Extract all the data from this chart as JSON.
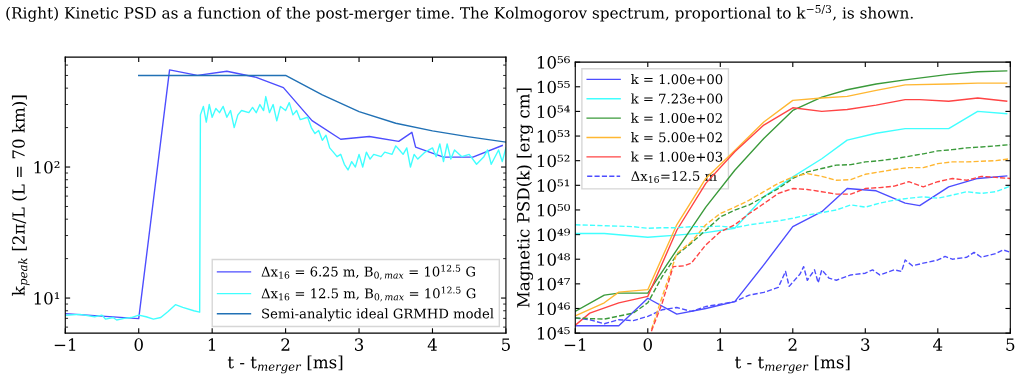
{
  "chart_data": [
    {
      "type": "line",
      "log": "y",
      "grid": false,
      "legend": "lower right",
      "line_style": "solid",
      "marker": "none",
      "annotations": [
        "(Right) Kinetic PSD as a function of the post-merger time. The Kolmogorov spectrum, proportional to k$^{−5/3}$, is shown."
      ],
      "xlabel": "t - t$_{merger}$ [ms]",
      "ylabel": "k$_{peak}$ [2π/L (L = 70 km)]",
      "xlim": [
        -1,
        5
      ],
      "ylim": [
        5.4,
        690
      ],
      "xticks": [
        {
          "value": -1,
          "label": "−1"
        },
        0,
        1,
        2,
        3,
        4,
        5
      ],
      "yticks": [
        {
          "value": 10,
          "label": "10¹"
        },
        {
          "value": 100,
          "label": "10²"
        }
      ],
      "series": [
        {
          "name": "Δx$_{16}$ = 6.25 m, B$_{0,max}$ = 10$^{12.5}$ G",
          "color": "#4d4dff",
          "x": [
            -1,
            0,
            0.42,
            0.8,
            1.2,
            1.6,
            1.97,
            2.36,
            2.75,
            3.14,
            3.54,
            3.72,
            3.77,
            4.15,
            4.55,
            4.95
          ],
          "values": [
            7.6,
            6.97,
            551,
            501,
            538,
            484,
            404,
            226,
            163,
            171,
            157,
            184,
            142,
            119,
            119,
            146
          ]
        },
        {
          "name": "Δx$_{16}$ = 12.5 m, B$_{0,max}$ = 10$^{12.5}$ G",
          "color": "#40ffff",
          "x": [
            -1,
            -0.8,
            -0.6,
            -0.5,
            -0.45,
            -0.35,
            -0.3,
            -0.2,
            -0.1,
            0,
            0.1,
            0.2,
            0.3,
            0.4,
            0.5,
            0.6,
            0.75,
            0.83,
            0.84,
            0.88,
            0.92,
            0.96,
            1.0,
            1.05,
            1.1,
            1.15,
            1.2,
            1.25,
            1.3,
            1.35,
            1.4,
            1.5,
            1.55,
            1.6,
            1.65,
            1.7,
            1.73,
            1.78,
            1.83,
            1.88,
            1.93,
            2.0,
            2.05,
            2.1,
            2.15,
            2.2,
            2.3,
            2.35,
            2.4,
            2.45,
            2.5,
            2.55,
            2.6,
            2.65,
            2.7,
            2.75,
            2.8,
            2.85,
            2.9,
            2.95,
            3.0,
            3.05,
            3.1,
            3.15,
            3.2,
            3.3,
            3.35,
            3.45,
            3.5,
            3.55,
            3.6,
            3.65,
            3.7,
            3.75,
            3.8,
            3.9,
            4.0,
            4.05,
            4.1,
            4.15,
            4.2,
            4.25,
            4.3,
            4.4,
            4.5,
            4.6,
            4.7,
            4.75,
            4.8,
            4.9,
            4.95,
            5.0
          ],
          "values": [
            7.4,
            7.5,
            7.2,
            7.4,
            6.9,
            7.1,
            6.8,
            7.0,
            7.1,
            7.4,
            7.2,
            6.9,
            7.1,
            7.9,
            8.9,
            8.5,
            8.0,
            7.8,
            250,
            290,
            220,
            300,
            240,
            280,
            260,
            290,
            240,
            270,
            200,
            250,
            270,
            260,
            285,
            260,
            300,
            270,
            345,
            260,
            300,
            225,
            290,
            270,
            310,
            250,
            270,
            230,
            240,
            200,
            180,
            190,
            160,
            175,
            140,
            130,
            120,
            125,
            105,
            95,
            110,
            100,
            125,
            100,
            130,
            115,
            125,
            120,
            130,
            125,
            145,
            135,
            125,
            140,
            100,
            125,
            115,
            130,
            140,
            120,
            150,
            110,
            150,
            115,
            135,
            120,
            125,
            105,
            120,
            135,
            105,
            135,
            110,
            140
          ]
        },
        {
          "name": "Semi-analytic ideal GRMHD model",
          "color": "#2171b5",
          "x": [
            0,
            2,
            2.5,
            3,
            3.5,
            4,
            4.5,
            5
          ],
          "values": [
            500,
            500,
            355,
            265,
            216,
            189,
            170,
            155
          ]
        }
      ]
    },
    {
      "type": "line",
      "log": "y",
      "grid": false,
      "legend": "upper left",
      "marker": "none",
      "xlabel": "t - t$_{merger}$ [ms]",
      "ylabel": "Magnetic PSD(k) [erg cm]",
      "xlim": [
        -1,
        5
      ],
      "ylim": [
        1e+45,
        1e+56
      ],
      "xticks": [
        {
          "value": -1,
          "label": "−1"
        },
        0,
        1,
        2,
        3,
        4,
        5
      ],
      "yticks": [
        {
          "value": 1e+45,
          "label": "10⁴⁵"
        },
        {
          "value": 1e+46,
          "label": "10⁴⁶"
        },
        {
          "value": 1e+47,
          "label": "10⁴⁷"
        },
        {
          "value": 1e+48,
          "label": "10⁴⁸"
        },
        {
          "value": 1e+49,
          "label": "10⁴⁹"
        },
        {
          "value": 1e+50,
          "label": "10⁵⁰"
        },
        {
          "value": 1e+51,
          "label": "10⁵¹"
        },
        {
          "value": 1e+52,
          "label": "10⁵²"
        },
        {
          "value": 1e+53,
          "label": "10⁵³"
        },
        {
          "value": 1e+54,
          "label": "10⁵⁴"
        },
        {
          "value": 1e+55,
          "label": "10⁵⁵"
        },
        {
          "value": 1e+56,
          "label": "10⁵⁶"
        }
      ],
      "series": [
        {
          "name": "k = 1.00e+00",
          "color": "#4d4dff",
          "line_style": "solid",
          "x": [
            -1,
            -0.6,
            -0.4,
            0,
            0.4,
            0.8,
            1.2,
            1.6,
            2.0,
            2.4,
            2.75,
            3.15,
            3.55,
            3.75,
            4.15,
            4.55,
            4.95
          ],
          "values": [
            2e+45,
            2e+45,
            2e+45,
            2.6e+46,
            5.9e+45,
            1e+46,
            1.9e+46,
            5.9e+47,
            2.1e+49,
            8.5e+49,
            7.4e+50,
            6e+50,
            1.9e+50,
            1.5e+50,
            8.7e+50,
            1.9e+51,
            2.4e+51
          ]
        },
        {
          "name": "k = 7.23e+00",
          "color": "#40ffff",
          "line_style": "solid",
          "x": [
            -1,
            -0.6,
            0,
            0.4,
            0.8,
            1.2,
            1.6,
            2.0,
            2.4,
            2.75,
            3.15,
            3.55,
            4.15,
            4.55,
            4.95
          ],
          "values": [
            1.1e+49,
            1.1e+49,
            7.8e+48,
            9.5e+48,
            1.2e+49,
            1.8e+49,
            3.4e+50,
            2.2e+51,
            1.2e+52,
            6.8e+52,
            1.3e+53,
            2e+53,
            2e+53,
            1e+54,
            8.1e+53
          ]
        },
        {
          "name": "k = 1.00e+02",
          "color": "#3a9a3a",
          "line_style": "solid",
          "x": [
            -1,
            -0.6,
            -0.4,
            0,
            0.4,
            0.8,
            1.2,
            1.6,
            2.0,
            2.4,
            2.75,
            3.15,
            3.55,
            4.15,
            4.55,
            4.95
          ],
          "values": [
            7.6e+45,
            3.5e+46,
            4.2e+46,
            4.2e+46,
            2.4e+48,
            1.3e+50,
            4.1e+51,
            7.9e+52,
            1.1e+54,
            3.8e+54,
            7.6e+54,
            1.3e+55,
            1.9e+55,
            3.2e+55,
            4.1e+55,
            4.4e+55
          ]
        },
        {
          "name": "k = 5.00e+02",
          "color": "#ffb732",
          "line_style": "solid",
          "x": [
            -1,
            -0.6,
            -0.4,
            0,
            0.4,
            0.8,
            1.2,
            1.6,
            2.0,
            2.4,
            2.75,
            3.15,
            3.55,
            4.15,
            4.55,
            4.95
          ],
          "values": [
            5e+45,
            1.7e+46,
            4.6e+46,
            5.8e+46,
            2.5e+49,
            1.9e+51,
            2.6e+52,
            3.7e+53,
            2.8e+54,
            3.5e+54,
            4.1e+54,
            7.1e+54,
            1.2e+55,
            1.3e+55,
            1.4e+55,
            1.4e+55
          ]
        },
        {
          "name": "k = 1.00e+03",
          "color": "#ff4444",
          "line_style": "solid",
          "x": [
            -1,
            -0.8,
            -0.4,
            0,
            0.4,
            0.8,
            1.2,
            1.6,
            2.0,
            2.4,
            2.75,
            3.15,
            3.55,
            3.75,
            4.15,
            4.55,
            4.95
          ],
          "values": [
            2.1e+45,
            6.5e+45,
            1.7e+46,
            3.1e+46,
            1.5e+49,
            1.2e+51,
            2.3e+52,
            2.8e+53,
            1.4e+54,
            1e+54,
            1.2e+54,
            1.8e+54,
            3e+54,
            3e+54,
            2.6e+54,
            3.5e+54,
            2.6e+54
          ]
        },
        {
          "name": "Δx$_{16}$=12.5 m",
          "color": "#4d4dff",
          "line_style": "dashed",
          "x": [
            -1,
            -0.8,
            -0.6,
            -0.4,
            -0.2,
            0,
            0.2,
            0.4,
            0.6,
            0.8,
            1.0,
            1.2,
            1.4,
            1.6,
            1.8,
            1.9,
            1.95,
            2.1,
            2.15,
            2.2,
            2.3,
            2.35,
            2.4,
            2.5,
            2.6,
            2.8,
            3.0,
            3.1,
            3.2,
            3.4,
            3.5,
            3.55,
            3.65,
            3.8,
            4.0,
            4.1,
            4.2,
            4.4,
            4.5,
            4.6,
            4.8,
            4.9,
            5.0
          ],
          "values": [
            4.1e+45,
            3.5e+45,
            2.4e+45,
            3.5e+45,
            3.2e+45,
            4.8e+45,
            8.9e+45,
            1.1e+46,
            7.6e+45,
            1.2e+46,
            1.5e+46,
            1.9e+46,
            3.5e+46,
            4.5e+46,
            7.2e+46,
            3.2e+47,
            7.9e+46,
            2.5e+47,
            5e+47,
            1.4e+47,
            3.7e+47,
            1.1e+47,
            3.7e+47,
            1.7e+47,
            1.4e+47,
            2.3e+47,
            2.7e+47,
            3.7e+47,
            2.3e+47,
            3.7e+47,
            3.2e+47,
            9.3e+47,
            5.4e+47,
            6.9e+47,
            9.3e+47,
            1.3e+48,
            1e+48,
            1.2e+48,
            1.9e+48,
            1.2e+48,
            1.7e+48,
            2.4e+48,
            1.9e+48
          ]
        },
        {
          "color": "#40ffff",
          "line_style": "dashed",
          "x": [
            -1,
            -0.6,
            -0.2,
            0,
            0.2,
            0.4,
            0.6,
            0.8,
            1.0,
            1.2,
            1.4,
            1.6,
            1.8,
            2.0,
            2.2,
            2.4,
            2.6,
            2.8,
            3.0,
            3.2,
            3.4,
            3.6,
            3.8,
            4.0,
            4.2,
            4.4,
            4.6,
            4.8,
            5.0
          ],
          "values": [
            2.5e+49,
            2.3e+49,
            2.1e+49,
            1.8e+49,
            1.9e+49,
            1.9e+49,
            2.1e+49,
            2.1e+49,
            2.2e+49,
            1.9e+49,
            2.5e+49,
            3e+49,
            3.6e+49,
            4.6e+49,
            6.2e+49,
            7.8e+49,
            1e+50,
            1.6e+50,
            1.3e+50,
            1.9e+50,
            2.5e+50,
            3e+50,
            3.4e+50,
            3e+50,
            4e+50,
            5.5e+50,
            4.7e+50,
            5.5e+50,
            9.3e+50
          ]
        },
        {
          "color": "#3a9a3a",
          "line_style": "dashed",
          "x": [
            -1,
            -0.6,
            -0.2,
            0,
            0.2,
            0.4,
            0.6,
            0.8,
            1.0,
            1.2,
            1.4,
            1.6,
            1.8,
            2.0,
            2.2,
            2.4,
            2.6,
            2.8,
            3.0,
            3.2,
            3.4,
            3.6,
            3.8,
            4.0,
            4.2,
            4.4,
            4.6,
            4.8,
            5.0
          ],
          "values": [
            4.1e+45,
            3.7e+45,
            6.5e+45,
            1.7e+46,
            2e+47,
            1.5e+48,
            4.5e+48,
            1.5e+49,
            5.2e+49,
            9.8e+49,
            1.6e+50,
            3.4e+50,
            7.4e+50,
            1.9e+51,
            3.5e+51,
            4.8e+51,
            6.6e+51,
            6.9e+51,
            8.9e+51,
            1e+52,
            1.2e+52,
            1.5e+52,
            1.9e+52,
            2.5e+52,
            2.8e+52,
            3.3e+52,
            3.6e+52,
            4e+52,
            4.5e+52
          ]
        },
        {
          "color": "#ffb732",
          "line_style": "dashed",
          "x": [
            0.05,
            0.2,
            0.4,
            0.6,
            0.8,
            1.0,
            1.2,
            1.4,
            1.6,
            1.8,
            2.0,
            2.2,
            2.4,
            2.6,
            2.8,
            3.0,
            3.2,
            3.4,
            3.6,
            3.8,
            4.0,
            4.2,
            4.4,
            4.6,
            4.8,
            5.0
          ],
          "values": [
            1.4e+45,
            3.1e+46,
            1.7e+48,
            5.1e+48,
            2.5e+49,
            7.2e+49,
            1.3e+50,
            2.5e+50,
            5.5e+50,
            1.2e+51,
            2.2e+51,
            3e+51,
            2.3e+51,
            1.6e+51,
            1.7e+51,
            2.8e+51,
            3.5e+51,
            4.4e+51,
            5.2e+51,
            5.2e+51,
            7.6e+51,
            8.9e+51,
            8.9e+51,
            9.5e+51,
            1e+52,
            1.2e+52
          ]
        },
        {
          "color": "#ff4444",
          "line_style": "dashed",
          "x": [
            0.05,
            0.2,
            0.35,
            0.5,
            0.6,
            0.8,
            1.0,
            1.2,
            1.4,
            1.6,
            1.8,
            2.0,
            2.2,
            2.4,
            2.6,
            2.8,
            3.0,
            3.2,
            3.4,
            3.6,
            3.8,
            4.0,
            4.2,
            4.4,
            4.6,
            4.8,
            5.0
          ],
          "values": [
            1.2e+45,
            1.7e+46,
            5e+47,
            5.4e+47,
            6.9e+47,
            3.8e+48,
            1.3e+49,
            2.5e+49,
            7.2e+49,
            1.8e+50,
            4.7e+50,
            7.4e+50,
            6.8e+50,
            5.5e+50,
            4.4e+50,
            4.4e+50,
            7.4e+50,
            8.1e+50,
            9.3e+50,
            1.4e+51,
            8.7e+50,
            1.4e+51,
            1.9e+51,
            1.6e+51,
            2.3e+51,
            2.1e+51,
            1.9e+51
          ]
        }
      ]
    }
  ]
}
